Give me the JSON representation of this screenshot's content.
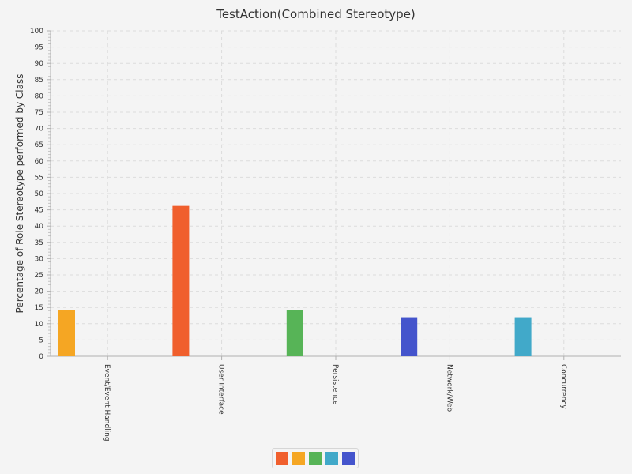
{
  "chart_data": {
    "type": "bar",
    "title": "TestAction(Combined Stereotype)",
    "xlabel": "",
    "ylabel": "Percentage of Role Stereotype performed by Class",
    "categories": [
      "Event/Event Handling",
      "User Interface",
      "Persistence",
      "Network/Web",
      "Concurrency"
    ],
    "series": [
      {
        "values": [
          0,
          46.2,
          0,
          0,
          0
        ],
        "color": "#f05f2d"
      },
      {
        "values": [
          14.2,
          0,
          0,
          0,
          0
        ],
        "color": "#f5a623"
      },
      {
        "values": [
          0,
          0,
          14.2,
          0,
          0
        ],
        "color": "#57b457"
      },
      {
        "values": [
          0,
          0,
          0,
          0,
          12.0
        ],
        "color": "#41a9c9"
      },
      {
        "values": [
          0,
          0,
          0,
          12.0,
          0
        ],
        "color": "#4454cc"
      }
    ],
    "ylim": [
      0,
      100
    ],
    "yticks": [
      0,
      5,
      10,
      15,
      20,
      25,
      30,
      35,
      40,
      45,
      50,
      55,
      60,
      65,
      70,
      75,
      80,
      85,
      90,
      95,
      100
    ],
    "grid": true,
    "legend_position": "bottom"
  }
}
